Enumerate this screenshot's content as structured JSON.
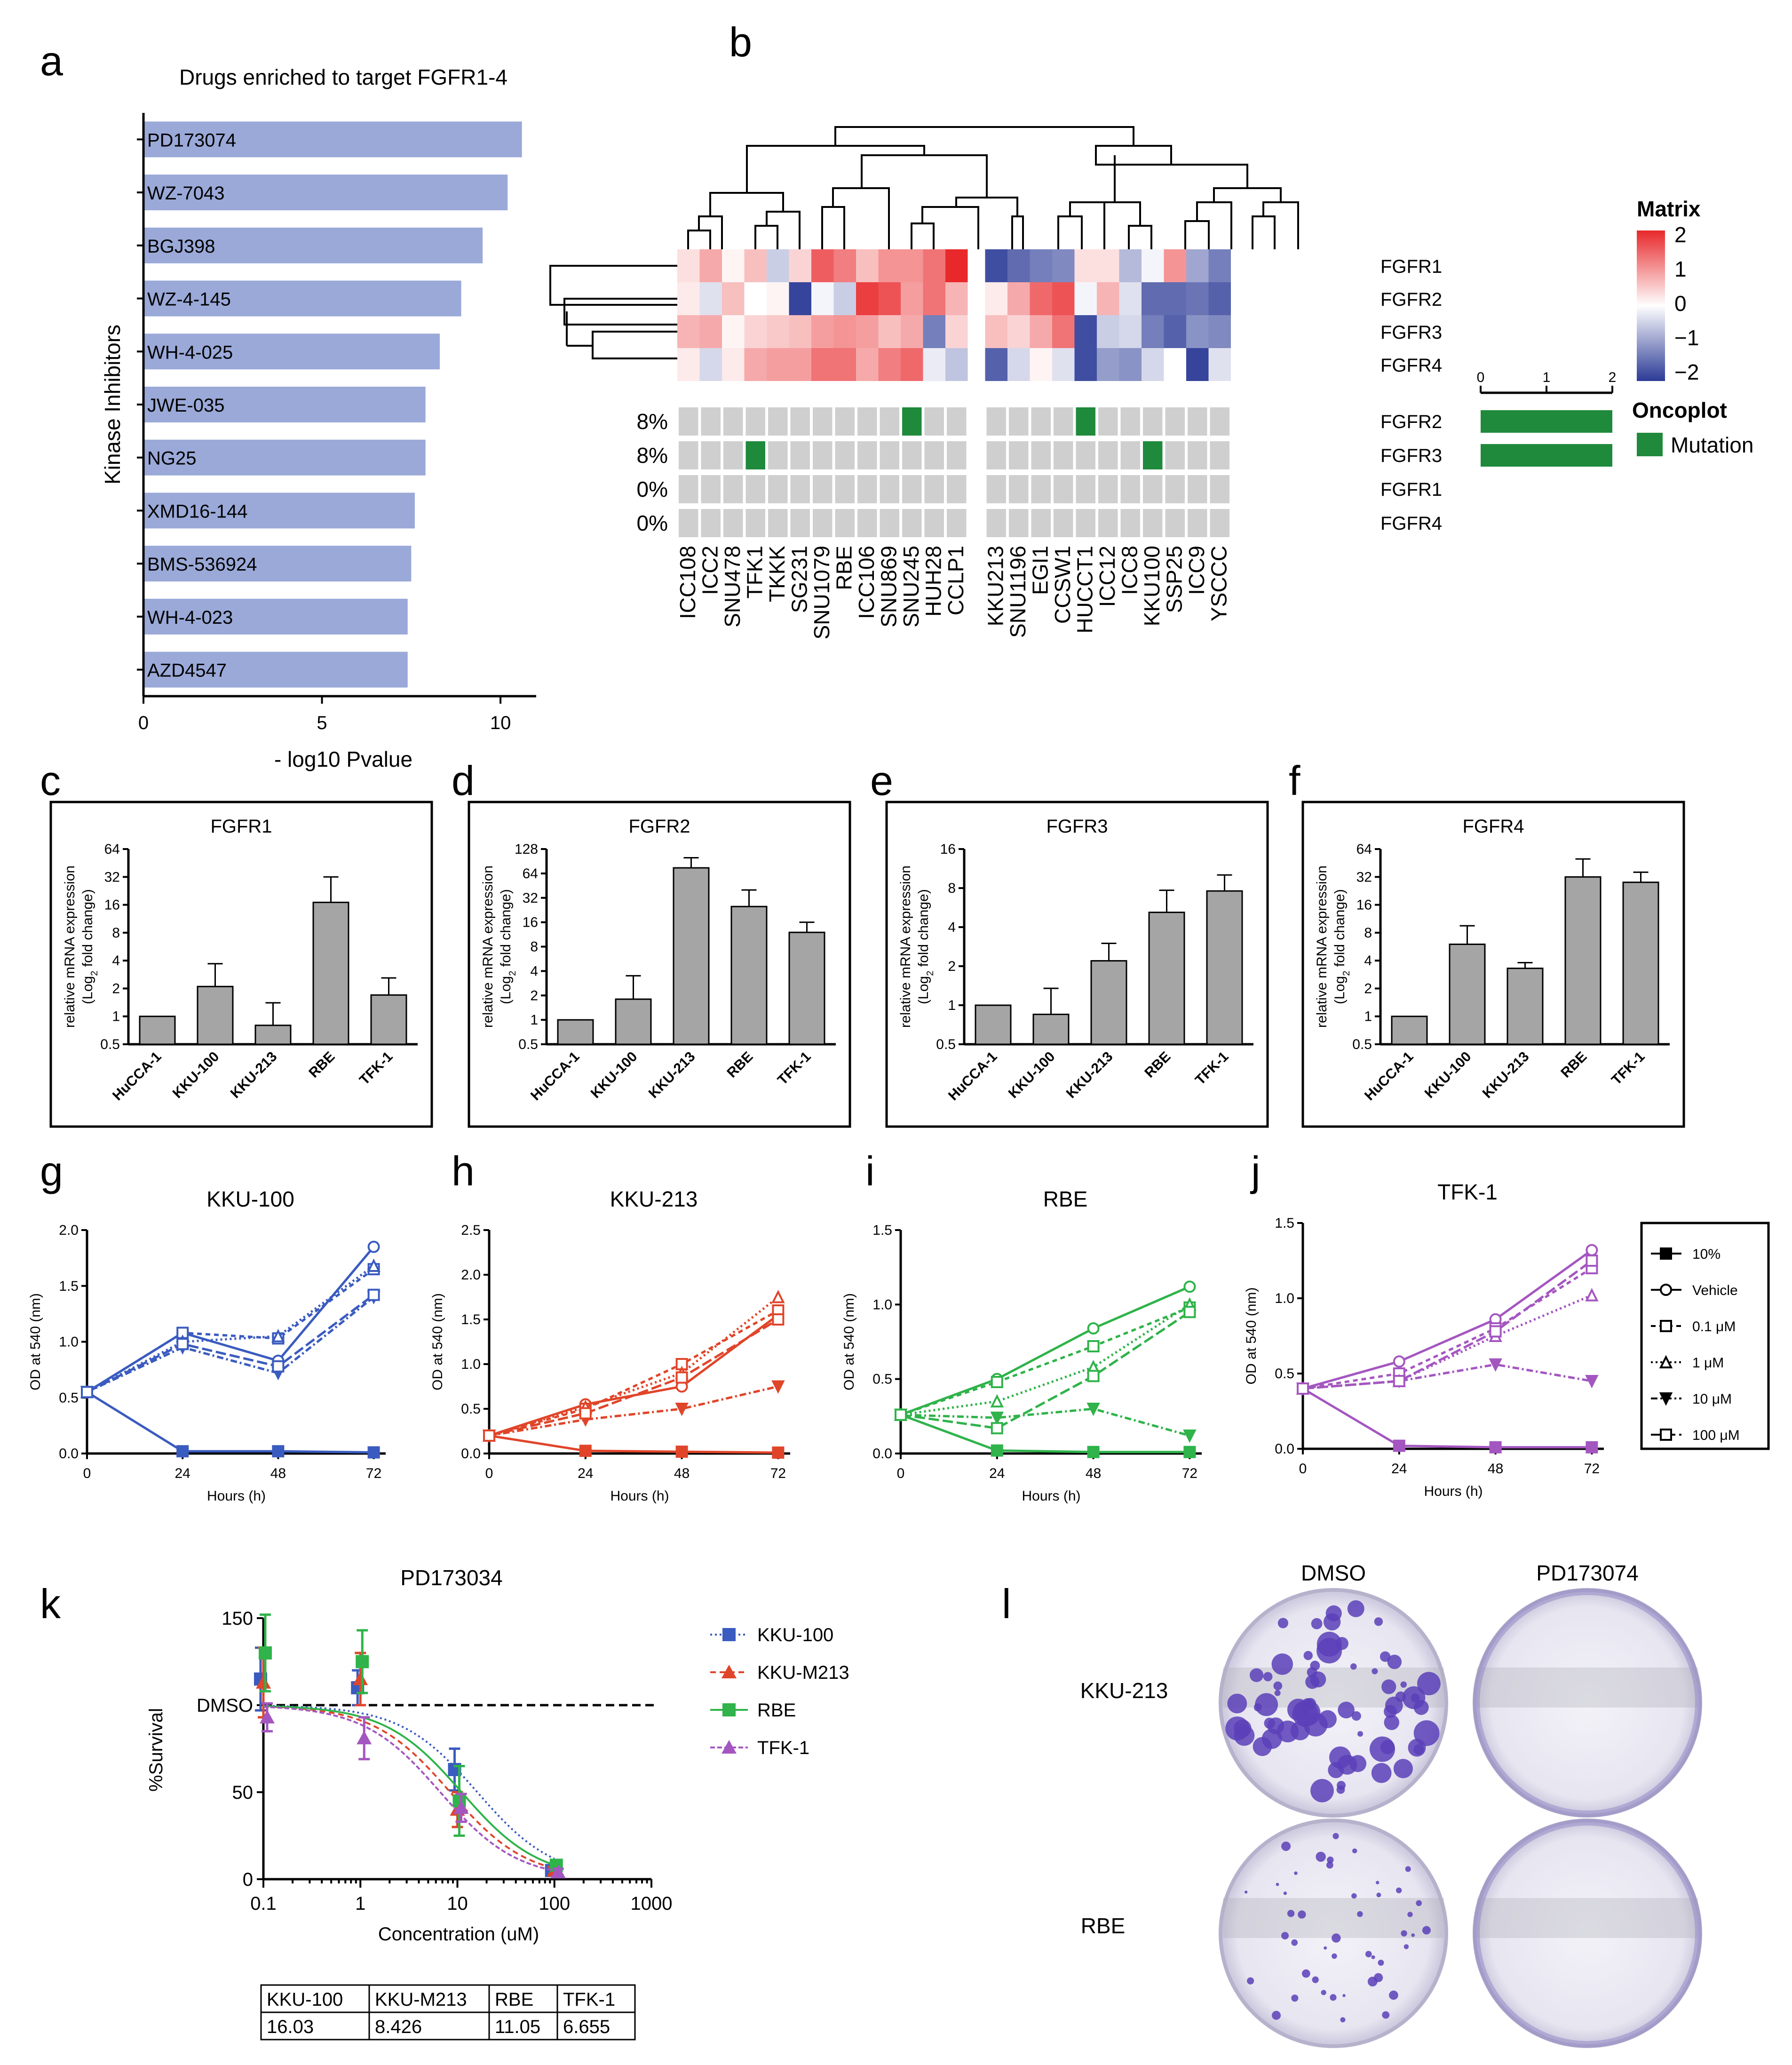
{
  "panel_labels": [
    "a",
    "b",
    "c",
    "d",
    "e",
    "f",
    "g",
    "h",
    "i",
    "j",
    "k",
    "l"
  ],
  "chart_data": [
    {
      "panel": "a",
      "type": "bar",
      "orientation": "horizontal",
      "title": "Drugs enriched to target FGFR1-4",
      "ylabel": "Kinase Inhibitors",
      "xlabel": "- log10 Pvalue",
      "xlim": [
        0,
        11
      ],
      "xticks": [
        0,
        5,
        10
      ],
      "bar_color": "#9aa9d8",
      "categories": [
        "PD173074",
        "WZ-7043",
        "BGJ398",
        "WZ-4-145",
        "WH-4-025",
        "JWE-035",
        "NG25",
        "XMD16-144",
        "BMS-536924",
        "WH-4-023",
        "AZD4547"
      ],
      "values": [
        10.6,
        10.2,
        9.5,
        8.9,
        8.3,
        7.9,
        7.9,
        7.6,
        7.5,
        7.4,
        7.4
      ]
    },
    {
      "panel": "b",
      "type": "heatmap",
      "legend_title": "Matrix",
      "legend_ticks": [
        "2",
        "1",
        "0",
        "−1",
        "−2"
      ],
      "colors": {
        "high": "#e8282b",
        "mid": "#ffffff",
        "low": "#2b3a96"
      },
      "genes": [
        "FGFR1",
        "FGFR2",
        "FGFR3",
        "FGFR4"
      ],
      "cell_lines": [
        "ICC108",
        "ICC2",
        "SNU478",
        "TFK1",
        "TKKK",
        "SG231",
        "SNU1079",
        "RBE",
        "ICC106",
        "SNU869",
        "SNU245",
        "HUH28",
        "CCLP1",
        "KKU213",
        "SNU1196",
        "EGI1",
        "CCSW1",
        "HUCCT1",
        "ICC12",
        "ICC8",
        "KKU100",
        "SSP25",
        "ICC9",
        "YSCCC"
      ],
      "matrix": [
        [
          0.3,
          0.8,
          0.1,
          0.6,
          -0.5,
          0.4,
          1.5,
          1.2,
          0.6,
          1.0,
          1.0,
          1.3,
          2.0,
          -1.8,
          -1.5,
          -1.3,
          -1.2,
          0.3,
          0.3,
          -0.7,
          -0.1,
          1.0,
          -0.9,
          -1.3
        ],
        [
          0.2,
          -0.3,
          0.6,
          0.0,
          0.1,
          -1.9,
          -0.1,
          -0.5,
          1.8,
          1.6,
          0.9,
          1.3,
          0.7,
          0.2,
          0.8,
          1.4,
          1.6,
          -0.1,
          0.7,
          -0.3,
          -1.5,
          -1.5,
          -1.4,
          -1.6
        ],
        [
          0.7,
          0.8,
          0.1,
          0.4,
          0.5,
          0.6,
          0.9,
          1.0,
          0.9,
          0.6,
          0.8,
          -1.3,
          0.4,
          0.6,
          0.4,
          0.8,
          1.3,
          -1.8,
          -0.5,
          -0.4,
          -1.3,
          -1.6,
          -1.1,
          -1.2
        ],
        [
          0.2,
          -0.4,
          0.2,
          0.8,
          0.9,
          0.9,
          1.3,
          1.3,
          0.8,
          1.2,
          1.4,
          -0.2,
          -0.6,
          -1.6,
          -0.4,
          0.1,
          -0.3,
          -1.8,
          -1.0,
          -1.1,
          -0.4,
          0.0,
          -1.9,
          -0.3
        ]
      ],
      "oncoplot_title": "Oncoplot",
      "oncoplot_legend": "Mutation",
      "mutation_color": "#1f8a3b",
      "oncoplot_rows": [
        {
          "gene": "FGFR2",
          "pct": "8%",
          "mutated": [
            "SNU245",
            "HUCCT1"
          ],
          "bar": 2
        },
        {
          "gene": "FGFR3",
          "pct": "8%",
          "mutated": [
            "TFK1",
            "KKU100"
          ],
          "bar": 2
        },
        {
          "gene": "FGFR1",
          "pct": "0%",
          "mutated": [],
          "bar": 0
        },
        {
          "gene": "FGFR4",
          "pct": "0%",
          "mutated": [],
          "bar": 0
        }
      ],
      "bar_axis_ticks": [
        "0",
        "1",
        "2"
      ]
    },
    {
      "panel": "c",
      "type": "bar",
      "title": "FGFR1",
      "ylabel": "relative mRNA expression",
      "ylabel2": "(Log",
      "ylabel_sub": "2",
      "ylabel3": " fold change)",
      "categories": [
        "HuCCA-1",
        "KKU-100",
        "KKU-213",
        "RBE",
        "TFK-1"
      ],
      "values": [
        1,
        2.1,
        0.8,
        17,
        1.7
      ],
      "errors": [
        0,
        1.6,
        0.6,
        15,
        0.9
      ],
      "yticks": [
        "0.5",
        "1",
        "2",
        "4",
        "8",
        "16",
        "32",
        "64"
      ],
      "ylim": [
        0.5,
        64
      ]
    },
    {
      "panel": "d",
      "type": "bar",
      "title": "FGFR2",
      "ylabel": "relative mRNA expression",
      "ylabel2": "(Log",
      "ylabel_sub": "2",
      "ylabel3": " fold change)",
      "categories": [
        "HuCCA-1",
        "KKU-100",
        "KKU-213",
        "RBE",
        "TFK-1"
      ],
      "values": [
        1,
        1.8,
        75,
        25,
        12
      ],
      "errors": [
        0,
        1.7,
        25,
        15,
        4
      ],
      "yticks": [
        "0.5",
        "1",
        "2",
        "4",
        "8",
        "16",
        "32",
        "64",
        "128"
      ],
      "ylim": [
        0.5,
        128
      ]
    },
    {
      "panel": "e",
      "type": "bar",
      "title": "FGFR3",
      "ylabel": "relative mRNA expression",
      "ylabel2": "(Log",
      "ylabel_sub": "2",
      "ylabel3": " fold change)",
      "categories": [
        "HuCCA-1",
        "KKU-100",
        "KKU-213",
        "RBE",
        "TFK-1"
      ],
      "values": [
        1,
        0.85,
        2.2,
        5.2,
        7.6
      ],
      "errors": [
        0,
        0.5,
        0.8,
        2.5,
        2.5
      ],
      "yticks": [
        "0.5",
        "1",
        "2",
        "4",
        "8",
        "16"
      ],
      "ylim": [
        0.5,
        16
      ]
    },
    {
      "panel": "f",
      "type": "bar",
      "title": "FGFR4",
      "ylabel": "relative mRNA expression",
      "ylabel2": "(Log",
      "ylabel_sub": "2",
      "ylabel3": " fold change)",
      "categories": [
        "HuCCA-1",
        "KKU-100",
        "KKU-213",
        "RBE",
        "TFK-1"
      ],
      "values": [
        1,
        6,
        3.3,
        32,
        28
      ],
      "errors": [
        0,
        3.5,
        0.5,
        18,
        8
      ],
      "yticks": [
        "0.5",
        "1",
        "2",
        "4",
        "8",
        "16",
        "32",
        "64"
      ],
      "ylim": [
        0.5,
        64
      ]
    },
    {
      "panel": "g",
      "type": "line",
      "title": "KKU-100",
      "xlabel": "Hours (h)",
      "ylabel": "OD at 540 (nm)",
      "color": "#3a5bbf",
      "x": [
        0,
        24,
        48,
        72
      ],
      "xticks": [
        "0",
        "24",
        "48",
        "72"
      ],
      "yticks": [
        "0.0",
        "0.5",
        "1.0",
        "1.5",
        "2.0"
      ],
      "ylim": [
        0,
        2.0
      ],
      "series": [
        {
          "name": "10%",
          "values": [
            0.55,
            0.02,
            0.02,
            0.01
          ]
        },
        {
          "name": "Vehicle",
          "values": [
            0.55,
            1.08,
            0.83,
            1.85
          ]
        },
        {
          "name": "0.1 μM",
          "values": [
            0.55,
            1.08,
            1.03,
            1.65
          ]
        },
        {
          "name": "1 μM",
          "values": [
            0.55,
            1.0,
            1.05,
            1.68
          ]
        },
        {
          "name": "10 μM",
          "values": [
            0.55,
            0.95,
            0.72,
            1.4
          ]
        },
        {
          "name": "100 μM",
          "values": [
            0.55,
            0.98,
            0.78,
            1.42
          ]
        }
      ]
    },
    {
      "panel": "h",
      "type": "line",
      "title": "KKU-213",
      "xlabel": "Hours (h)",
      "ylabel": "OD at 540 (nm)",
      "color": "#e0452a",
      "x": [
        0,
        24,
        48,
        72
      ],
      "xticks": [
        "0",
        "24",
        "48",
        "72"
      ],
      "yticks": [
        "0.0",
        "0.5",
        "1.0",
        "1.5",
        "2.0",
        "2.5"
      ],
      "ylim": [
        0,
        2.5
      ],
      "series": [
        {
          "name": "10%",
          "values": [
            0.2,
            0.03,
            0.02,
            0.01
          ]
        },
        {
          "name": "Vehicle",
          "values": [
            0.2,
            0.55,
            0.75,
            1.55
          ]
        },
        {
          "name": "0.1 μM",
          "values": [
            0.2,
            0.5,
            1.0,
            1.6
          ]
        },
        {
          "name": "1 μM",
          "values": [
            0.2,
            0.52,
            0.9,
            1.75
          ]
        },
        {
          "name": "10 μM",
          "values": [
            0.2,
            0.38,
            0.5,
            0.75
          ]
        },
        {
          "name": "100 μM",
          "values": [
            0.2,
            0.45,
            0.85,
            1.5
          ]
        }
      ]
    },
    {
      "panel": "i",
      "type": "line",
      "title": "RBE",
      "xlabel": "Hours (h)",
      "ylabel": "OD at 540 (nm)",
      "color": "#2fb34a",
      "x": [
        0,
        24,
        48,
        72
      ],
      "xticks": [
        "0",
        "24",
        "48",
        "72"
      ],
      "yticks": [
        "0.0",
        "0.5",
        "1.0",
        "1.5"
      ],
      "ylim": [
        0,
        1.5
      ],
      "series": [
        {
          "name": "10%",
          "values": [
            0.26,
            0.02,
            0.01,
            0.01
          ]
        },
        {
          "name": "Vehicle",
          "values": [
            0.26,
            0.5,
            0.84,
            1.12
          ]
        },
        {
          "name": "0.1 μM",
          "values": [
            0.26,
            0.48,
            0.72,
            0.98
          ]
        },
        {
          "name": "1 μM",
          "values": [
            0.26,
            0.35,
            0.58,
            1.0
          ]
        },
        {
          "name": "10 μM",
          "values": [
            0.26,
            0.24,
            0.3,
            0.12
          ]
        },
        {
          "name": "100 μM",
          "values": [
            0.26,
            0.17,
            0.52,
            0.95
          ]
        }
      ]
    },
    {
      "panel": "j",
      "type": "line",
      "title": "TFK-1",
      "xlabel": "Hours (h)",
      "ylabel": "OD at 540 (nm)",
      "color": "#a456c0",
      "x": [
        0,
        24,
        48,
        72
      ],
      "xticks": [
        "0",
        "24",
        "48",
        "72"
      ],
      "yticks": [
        "0.0",
        "0.5",
        "1.0",
        "1.5"
      ],
      "ylim": [
        0,
        1.5
      ],
      "series": [
        {
          "name": "10%",
          "values": [
            0.4,
            0.02,
            0.01,
            0.01
          ]
        },
        {
          "name": "Vehicle",
          "values": [
            0.4,
            0.58,
            0.86,
            1.32
          ]
        },
        {
          "name": "0.1 μM",
          "values": [
            0.4,
            0.5,
            0.8,
            1.2
          ]
        },
        {
          "name": "1 μM",
          "values": [
            0.4,
            0.45,
            0.75,
            1.02
          ]
        },
        {
          "name": "10 μM",
          "values": [
            0.4,
            0.45,
            0.56,
            0.45
          ]
        },
        {
          "name": "100 μM",
          "values": [
            0.4,
            0.45,
            0.78,
            1.25
          ]
        }
      ]
    },
    {
      "panel": "k",
      "type": "scatter",
      "title": "PD173034",
      "xlabel": "Concentration (uM)",
      "ylabel": "%Survival",
      "xscale": "log",
      "xlim": [
        0.1,
        1000
      ],
      "ylim": [
        0,
        150
      ],
      "xticks": [
        "0.1",
        "1",
        "10",
        "100",
        "1000"
      ],
      "yticks": [
        "0",
        "50",
        "150"
      ],
      "dmso_label": "DMSO",
      "dmso_value": 100,
      "series": [
        {
          "name": "KKU-100",
          "color": "#3a5bbf",
          "marker": "square",
          "x": [
            0.1,
            1,
            10,
            100
          ],
          "y": [
            115,
            110,
            63,
            5
          ],
          "err": [
            18,
            10,
            12,
            2
          ],
          "ic50": 16.03
        },
        {
          "name": "KKU-M213",
          "color": "#e0452a",
          "marker": "triangle",
          "x": [
            0.1,
            1,
            10,
            100
          ],
          "y": [
            113,
            115,
            40,
            5
          ],
          "err": [
            20,
            15,
            10,
            2
          ],
          "ic50": 8.426
        },
        {
          "name": "RBE",
          "color": "#2fb34a",
          "marker": "square",
          "x": [
            0.1,
            1,
            10,
            100
          ],
          "y": [
            130,
            125,
            45,
            8
          ],
          "err": [
            22,
            18,
            20,
            2
          ],
          "ic50": 11.05
        },
        {
          "name": "TFK-1",
          "color": "#a456c0",
          "marker": "triangle",
          "x": [
            0.1,
            1,
            10,
            100
          ],
          "y": [
            93,
            81,
            41,
            4
          ],
          "err": [
            8,
            12,
            8,
            2
          ],
          "ic50": 6.655
        }
      ],
      "ic50_table": {
        "headers": [
          "KKU-100",
          "KKU-M213",
          "RBE",
          "TFK-1"
        ],
        "values": [
          "16.03",
          "8.426",
          "11.05",
          "6.655"
        ]
      }
    },
    {
      "panel": "l",
      "type": "image-grid",
      "columns": [
        "DMSO",
        "PD173074"
      ],
      "rows": [
        "KKU-213",
        "RBE"
      ]
    }
  ]
}
